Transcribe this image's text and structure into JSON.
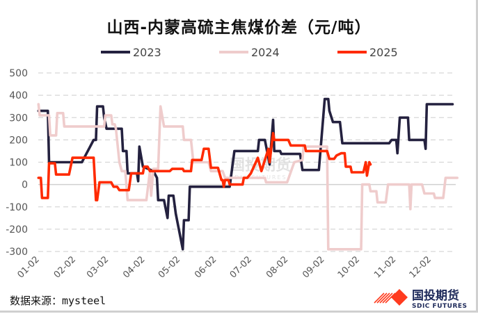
{
  "chart_data": {
    "type": "line",
    "title": "山西-内蒙高硫主焦煤价差（元/吨）",
    "xlabel": "",
    "ylabel": "",
    "ylim": [
      -300,
      500
    ],
    "yticks": [
      "500",
      "400",
      "300",
      "200",
      "100",
      "0",
      "-100",
      "-200",
      "-300"
    ],
    "xticks": [
      "01-02",
      "02-02",
      "03-02",
      "04-02",
      "05-02",
      "06-02",
      "07-02",
      "08-02",
      "09-02",
      "10-02",
      "11-02",
      "12-02"
    ],
    "grid": true,
    "legend_position": "top",
    "series": [
      {
        "name": "2023",
        "color": "#24213f",
        "points": [
          [
            "01-01",
            330
          ],
          [
            "01-09",
            330
          ],
          [
            "01-10",
            100
          ],
          [
            "02-07",
            100
          ],
          [
            "02-17",
            200
          ],
          [
            "02-19",
            200
          ],
          [
            "02-20",
            350
          ],
          [
            "02-25",
            350
          ],
          [
            "02-26",
            300
          ],
          [
            "02-28",
            250
          ],
          [
            "03-13",
            250
          ],
          [
            "03-14",
            150
          ],
          [
            "03-17",
            150
          ],
          [
            "03-18",
            50
          ],
          [
            "03-26",
            50
          ],
          [
            "03-27",
            15
          ],
          [
            "03-28",
            170
          ],
          [
            "03-31",
            80
          ],
          [
            "04-09",
            60
          ],
          [
            "04-12",
            30
          ],
          [
            "04-13",
            -70
          ],
          [
            "04-18",
            -70
          ],
          [
            "04-21",
            -150
          ],
          [
            "04-22",
            -50
          ],
          [
            "04-26",
            -50
          ],
          [
            "04-28",
            -130
          ],
          [
            "05-04",
            -290
          ],
          [
            "05-05",
            -160
          ],
          [
            "05-09",
            -160
          ],
          [
            "05-10",
            -10
          ],
          [
            "06-13",
            -10
          ],
          [
            "06-15",
            70
          ],
          [
            "06-17",
            150
          ],
          [
            "07-07",
            150
          ],
          [
            "07-08",
            200
          ],
          [
            "07-13",
            200
          ],
          [
            "07-17",
            90
          ],
          [
            "07-20",
            290
          ],
          [
            "07-21",
            150
          ],
          [
            "07-26",
            150
          ],
          [
            "07-27",
            137
          ],
          [
            "08-12",
            137
          ],
          [
            "08-14",
            65
          ],
          [
            "08-28",
            65
          ],
          [
            "09-02",
            383
          ],
          [
            "09-05",
            383
          ],
          [
            "09-06",
            330
          ],
          [
            "09-09",
            280
          ],
          [
            "09-15",
            280
          ],
          [
            "09-17",
            185
          ],
          [
            "10-27",
            185
          ],
          [
            "10-29",
            200
          ],
          [
            "11-02",
            200
          ],
          [
            "11-03",
            140
          ],
          [
            "11-05",
            300
          ],
          [
            "11-12",
            300
          ],
          [
            "11-13",
            200
          ],
          [
            "11-26",
            200
          ],
          [
            "11-27",
            160
          ],
          [
            "11-28",
            360
          ],
          [
            "12-20",
            360
          ]
        ]
      },
      {
        "name": "2024",
        "color": "#efcccc",
        "points": [
          [
            "01-01",
            360
          ],
          [
            "01-02",
            310
          ],
          [
            "01-10",
            310
          ],
          [
            "01-11",
            220
          ],
          [
            "01-16",
            220
          ],
          [
            "01-17",
            320
          ],
          [
            "01-22",
            320
          ],
          [
            "01-23",
            260
          ],
          [
            "02-26",
            260
          ],
          [
            "02-27",
            310
          ],
          [
            "03-04",
            310
          ],
          [
            "03-05",
            270
          ],
          [
            "03-07",
            270
          ],
          [
            "03-08",
            250
          ],
          [
            "03-11",
            100
          ],
          [
            "03-13",
            60
          ],
          [
            "03-16",
            60
          ],
          [
            "03-18",
            -70
          ],
          [
            "04-03",
            -70
          ],
          [
            "04-06",
            60
          ],
          [
            "04-07",
            -50
          ],
          [
            "04-09",
            70
          ],
          [
            "04-13",
            70
          ],
          [
            "04-15",
            350
          ],
          [
            "04-18",
            260
          ],
          [
            "05-04",
            260
          ],
          [
            "05-05",
            200
          ],
          [
            "05-11",
            200
          ],
          [
            "05-13",
            100
          ],
          [
            "05-26",
            100
          ],
          [
            "05-28",
            60
          ],
          [
            "06-07",
            60
          ],
          [
            "06-09",
            30
          ],
          [
            "07-13",
            30
          ],
          [
            "07-14",
            10
          ],
          [
            "08-01",
            10
          ],
          [
            "08-07",
            100
          ],
          [
            "08-14",
            110
          ],
          [
            "08-15",
            170
          ],
          [
            "09-04",
            170
          ],
          [
            "09-05",
            -290
          ],
          [
            "10-03",
            -290
          ],
          [
            "10-04",
            0
          ],
          [
            "10-10",
            0
          ],
          [
            "10-11",
            -30
          ],
          [
            "10-16",
            -30
          ],
          [
            "10-17",
            -80
          ],
          [
            "10-24",
            -80
          ],
          [
            "10-26",
            0
          ],
          [
            "11-13",
            0
          ],
          [
            "11-14",
            -110
          ],
          [
            "11-15",
            0
          ],
          [
            "11-24",
            0
          ],
          [
            "11-26",
            -40
          ],
          [
            "12-04",
            -40
          ],
          [
            "12-05",
            -60
          ],
          [
            "12-12",
            -60
          ],
          [
            "12-14",
            30
          ],
          [
            "12-24",
            30
          ]
        ]
      },
      {
        "name": "2025",
        "color": "#ff2a00",
        "points": [
          [
            "01-01",
            30
          ],
          [
            "01-03",
            30
          ],
          [
            "01-04",
            -60
          ],
          [
            "01-09",
            -60
          ],
          [
            "01-10",
            95
          ],
          [
            "01-15",
            95
          ],
          [
            "01-16",
            45
          ],
          [
            "01-27",
            45
          ],
          [
            "01-30",
            120
          ],
          [
            "02-17",
            120
          ],
          [
            "02-19",
            -70
          ],
          [
            "02-20",
            -70
          ],
          [
            "02-22",
            10
          ],
          [
            "03-04",
            10
          ],
          [
            "03-06",
            -10
          ],
          [
            "03-09",
            -10
          ],
          [
            "03-11",
            -25
          ],
          [
            "03-19",
            -25
          ],
          [
            "03-21",
            50
          ],
          [
            "03-31",
            50
          ],
          [
            "04-01",
            80
          ],
          [
            "04-04",
            80
          ],
          [
            "04-06",
            60
          ],
          [
            "04-23",
            60
          ],
          [
            "04-25",
            70
          ],
          [
            "05-04",
            70
          ],
          [
            "05-05",
            60
          ],
          [
            "05-11",
            60
          ],
          [
            "05-12",
            110
          ],
          [
            "05-20",
            110
          ],
          [
            "05-22",
            160
          ],
          [
            "05-26",
            160
          ],
          [
            "05-28",
            75
          ],
          [
            "06-03",
            75
          ],
          [
            "06-06",
            20
          ],
          [
            "06-07",
            20
          ],
          [
            "06-08",
            -10
          ],
          [
            "06-09",
            20
          ],
          [
            "06-12",
            20
          ],
          [
            "06-13",
            0
          ],
          [
            "06-24",
            0
          ],
          [
            "06-25",
            30
          ],
          [
            "06-28",
            30
          ],
          [
            "07-01",
            50
          ],
          [
            "07-07",
            120
          ],
          [
            "07-10",
            60
          ],
          [
            "07-16",
            160
          ],
          [
            "07-17",
            100
          ],
          [
            "07-20",
            230
          ],
          [
            "07-21",
            200
          ],
          [
            "08-02",
            200
          ],
          [
            "08-04",
            175
          ],
          [
            "08-16",
            175
          ],
          [
            "08-17",
            150
          ],
          [
            "09-04",
            150
          ],
          [
            "09-06",
            115
          ],
          [
            "09-10",
            115
          ],
          [
            "09-12",
            130
          ],
          [
            "09-16",
            140
          ],
          [
            "09-19",
            140
          ],
          [
            "09-20",
            80
          ],
          [
            "09-24",
            80
          ],
          [
            "09-25",
            55
          ],
          [
            "10-05",
            55
          ],
          [
            "10-07",
            100
          ],
          [
            "10-08",
            40
          ],
          [
            "10-10",
            100
          ],
          [
            "10-11",
            90
          ]
        ]
      }
    ]
  },
  "footer": {
    "source": "数据来源：mysteel"
  },
  "logo": {
    "name": "国投期货",
    "sub": "SDIC FUTURES"
  },
  "watermark": {
    "name": "国投期货",
    "sub": "SDIC FUTURES"
  }
}
